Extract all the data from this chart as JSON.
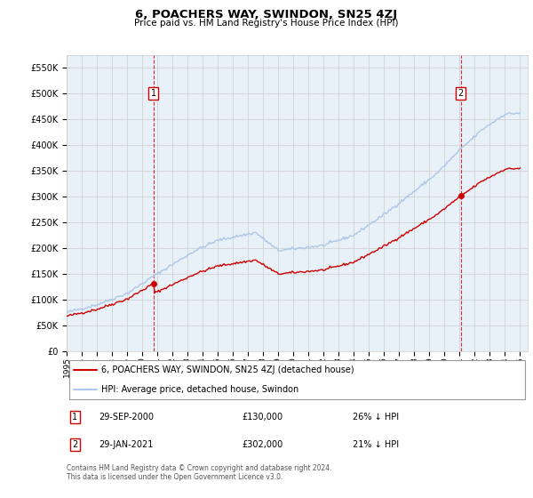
{
  "title": "6, POACHERS WAY, SWINDON, SN25 4ZJ",
  "subtitle": "Price paid vs. HM Land Registry's House Price Index (HPI)",
  "hpi_label": "HPI: Average price, detached house, Swindon",
  "property_label": "6, POACHERS WAY, SWINDON, SN25 4ZJ (detached house)",
  "hpi_color": "#aec6e8",
  "property_color": "#cc0000",
  "bg_color": "#e8f0f8",
  "annotation1": {
    "label": "1",
    "date": "29-SEP-2000",
    "price": "£130,000",
    "hpi": "26% ↓ HPI"
  },
  "annotation2": {
    "label": "2",
    "date": "29-JAN-2021",
    "price": "£302,000",
    "hpi": "21% ↓ HPI"
  },
  "footer": "Contains HM Land Registry data © Crown copyright and database right 2024.\nThis data is licensed under the Open Government Licence v3.0.",
  "ylim": [
    0,
    575000
  ],
  "yticks": [
    0,
    50000,
    100000,
    150000,
    200000,
    250000,
    300000,
    350000,
    400000,
    450000,
    500000,
    550000
  ],
  "ytick_labels": [
    "£0",
    "£50K",
    "£100K",
    "£150K",
    "£200K",
    "£250K",
    "£300K",
    "£350K",
    "£400K",
    "£450K",
    "£500K",
    "£550K"
  ],
  "sale1_date": 2000.75,
  "sale1_price": 130000,
  "sale2_date": 2021.08,
  "sale2_price": 302000,
  "hpi_key_x": [
    1995.0,
    1997.0,
    1999.0,
    2001.0,
    2003.5,
    2005.0,
    2007.5,
    2009.0,
    2010.5,
    2012.0,
    2014.0,
    2016.0,
    2018.0,
    2019.5,
    2021.0,
    2022.5,
    2024.0,
    2025.0
  ],
  "hpi_key_y": [
    75000,
    90000,
    112000,
    150000,
    195000,
    215000,
    230000,
    195000,
    200000,
    205000,
    225000,
    265000,
    310000,
    345000,
    390000,
    430000,
    460000,
    462000
  ]
}
